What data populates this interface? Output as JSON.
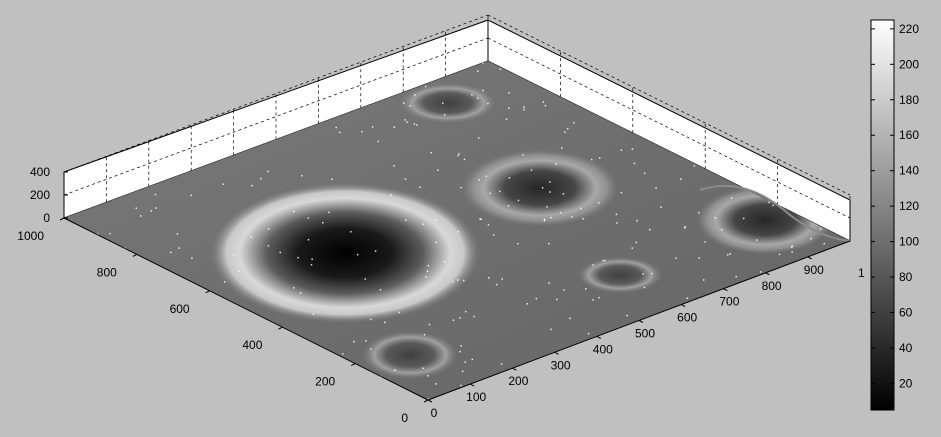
{
  "chart_data": {
    "type": "surface",
    "title": "",
    "xlabel": "",
    "ylabel": "",
    "zlabel": "",
    "grid": true,
    "colormap": "gray",
    "background": "#c0c0c0",
    "x_ticks": [
      0,
      100,
      200,
      300,
      400,
      500,
      600,
      700,
      800,
      900
    ],
    "x_end_label": "1",
    "y_ticks": [
      0,
      200,
      400,
      600,
      800,
      1000
    ],
    "z_ticks": [
      0,
      200,
      400
    ],
    "xlim": [
      0,
      1000
    ],
    "ylim": [
      0,
      1000
    ],
    "zlim": [
      0,
      400
    ],
    "colorbar": {
      "range": [
        5,
        225
      ],
      "ticks": [
        20,
        40,
        60,
        80,
        100,
        120,
        140,
        160,
        180,
        200,
        220
      ]
    },
    "surface_features": [
      {
        "kind": "large-crater",
        "x": 200,
        "y": 780,
        "intensity_min": 5,
        "rim_intensity": 215
      },
      {
        "kind": "crater",
        "x": 620,
        "y": 800,
        "intensity_min": 60
      },
      {
        "kind": "crater",
        "x": 600,
        "y": 480,
        "intensity_min": 50
      },
      {
        "kind": "crater-at-edge",
        "x": 950,
        "y": 320,
        "intensity_min": 55
      },
      {
        "kind": "crater",
        "x": 620,
        "y": 130,
        "intensity_min": 85
      },
      {
        "kind": "crater",
        "x": 100,
        "y": 300,
        "intensity_min": 90
      }
    ]
  }
}
